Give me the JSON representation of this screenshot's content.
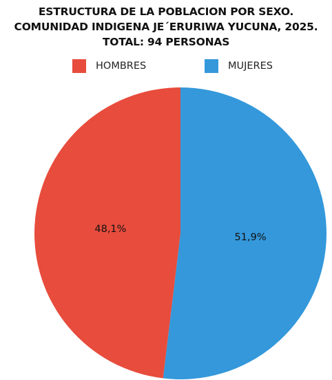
{
  "chart_data": {
    "type": "pie",
    "title": [
      "ESTRUCTURA DE LA POBLACION POR SEXO.",
      "COMUNIDAD INDIGENA JE´ERURIWA YUCUNA, 2025.",
      "TOTAL: 94 PERSONAS"
    ],
    "categories": [
      "HOMBRES",
      "MUJERES"
    ],
    "values": [
      48.1,
      51.9
    ],
    "data_labels": [
      "48,1%",
      "51,9%"
    ],
    "colors": [
      "#e74c3c",
      "#3498db"
    ],
    "legend_position": "top",
    "start_angle_deg": 0,
    "direction": "clockwise",
    "slice_order": [
      "MUJERES",
      "HOMBRES"
    ]
  }
}
